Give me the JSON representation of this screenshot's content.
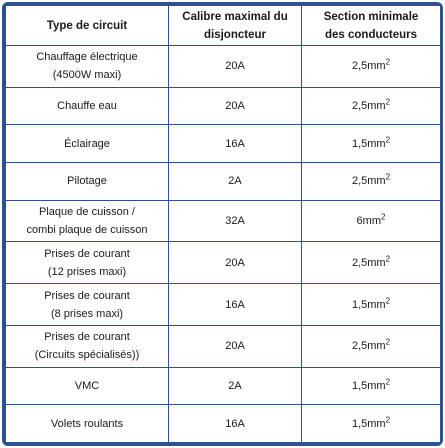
{
  "headers": {
    "type": "Type de circuit",
    "calibre_line1": "Calibre maximal du",
    "calibre_line2": "disjoncteur",
    "section_line1": "Section minimale",
    "section_line2": "des conducteurs"
  },
  "rows": [
    {
      "type1": "Chauffage électrique",
      "type2": "(4500W maxi)",
      "calibre": "20A",
      "section": "2,5mm",
      "sup": "2"
    },
    {
      "type1": "Chauffe eau",
      "type2": "",
      "calibre": "20A",
      "section": "2,5mm",
      "sup": "2"
    },
    {
      "type1": "Éclairage",
      "type2": "",
      "calibre": "16A",
      "section": "1,5mm",
      "sup": "2"
    },
    {
      "type1": "Pilotage",
      "type2": "",
      "calibre": "2A",
      "section": "2,5mm",
      "sup": "2"
    },
    {
      "type1": "Plaque de cuisson /",
      "type2": "combi plaque de cuisson",
      "calibre": "32A",
      "section": "6mm",
      "sup": "2"
    },
    {
      "type1": "Prises de courant",
      "type2": "(12 prises maxi)",
      "calibre": "20A",
      "section": "2,5mm",
      "sup": "2"
    },
    {
      "type1": "Prises de courant",
      "type2": "(8 prises maxi)",
      "calibre": "16A",
      "section": "1,5mm",
      "sup": "2"
    },
    {
      "type1": "Prises de courant",
      "type2": "(Circuits spécialisés))",
      "calibre": "20A",
      "section": "2,5mm",
      "sup": "2"
    },
    {
      "type1": "VMC",
      "type2": "",
      "calibre": "2A",
      "section": "1,5mm",
      "sup": "2"
    },
    {
      "type1": "Volets roulants",
      "type2": "",
      "calibre": "16A",
      "section": "1,5mm",
      "sup": "2"
    }
  ],
  "colors": {
    "border": "#2e5090"
  }
}
